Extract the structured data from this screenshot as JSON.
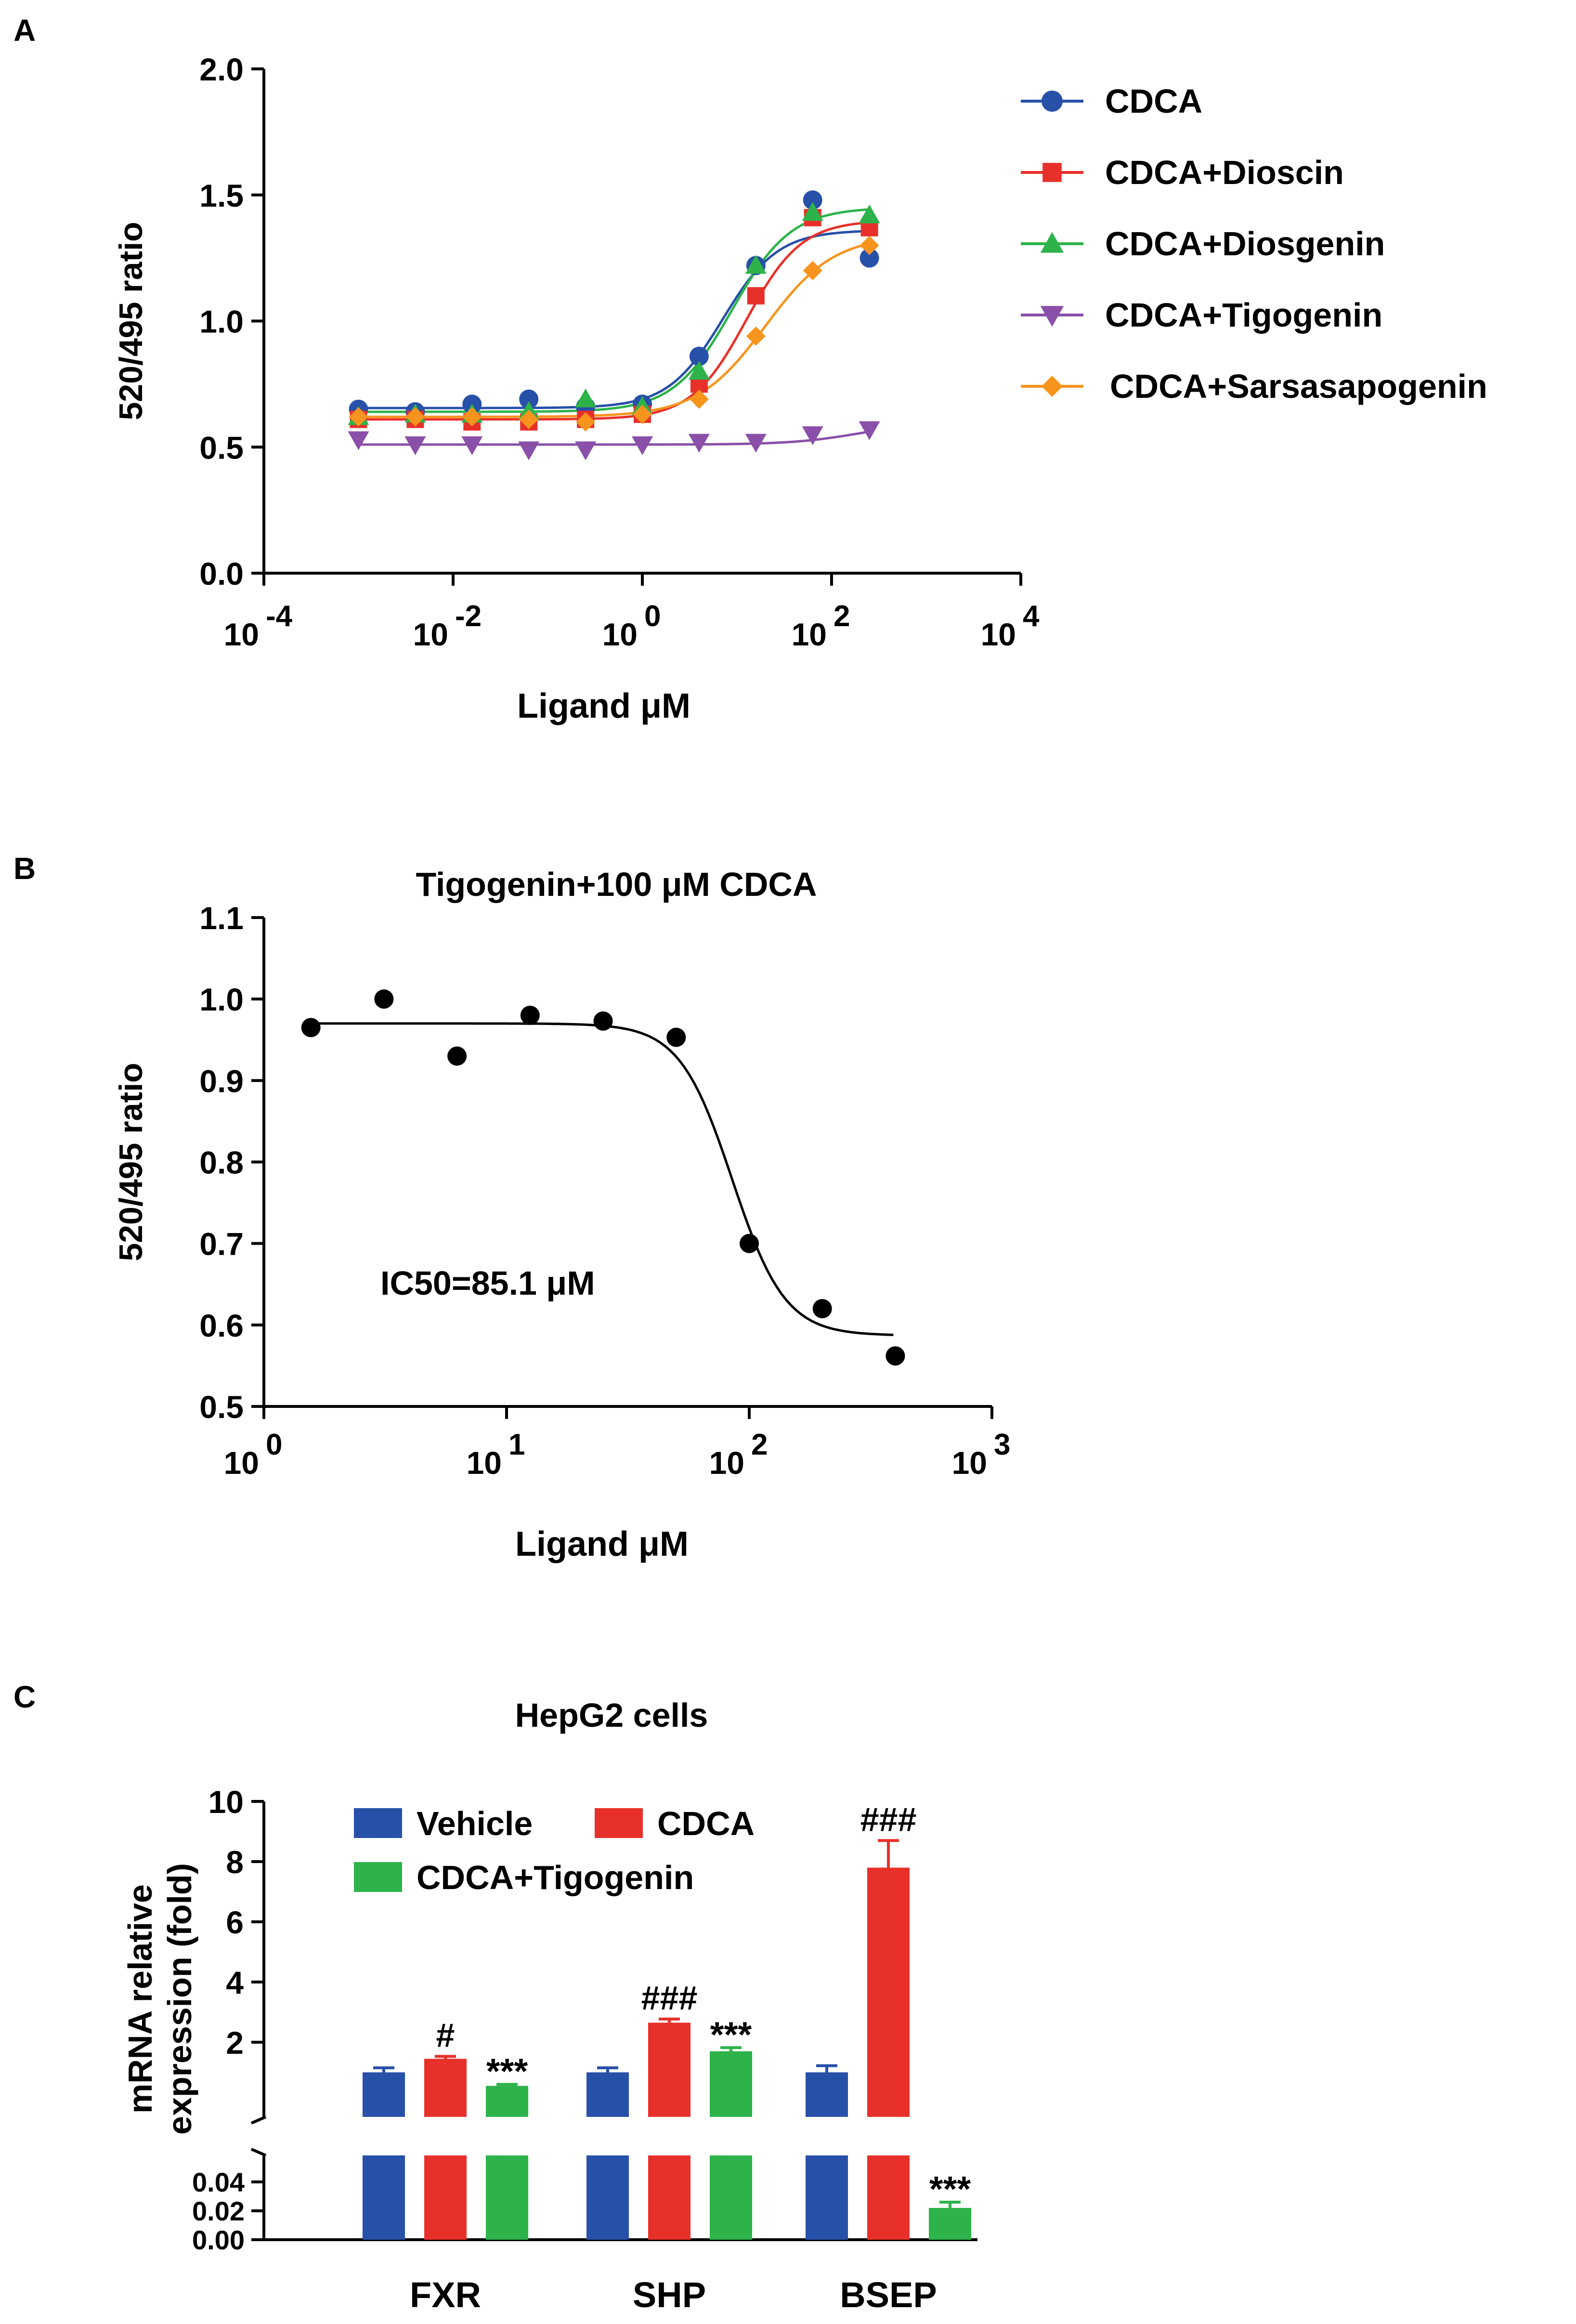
{
  "panels": {
    "A": {
      "label": "A",
      "chart_data": {
        "type": "line",
        "title": "",
        "xlabel": "Ligand μM",
        "ylabel": "520/495 ratio",
        "x_scale": "log10",
        "xlim_exp": [
          -4,
          4
        ],
        "x_ticks": [
          {
            "base": "10",
            "exp": "-4",
            "v": -4
          },
          {
            "base": "10",
            "exp": "-2",
            "v": -2
          },
          {
            "base": "10",
            "exp": "0",
            "v": 0
          },
          {
            "base": "10",
            "exp": "2",
            "v": 2
          },
          {
            "base": "10",
            "exp": "4",
            "v": 4
          }
        ],
        "ylim": [
          0,
          2.0
        ],
        "y_ticks": [
          "0.0",
          "0.5",
          "1.0",
          "1.5",
          "2.0"
        ],
        "legend_position": "top-right",
        "x_log_values": [
          -3.0,
          -2.4,
          -1.8,
          -1.2,
          -0.6,
          0.0,
          0.6,
          1.2,
          1.8,
          2.4
        ],
        "series": [
          {
            "name": "CDCA",
            "color": "#2750a8",
            "marker": "circle",
            "values": [
              0.65,
              0.64,
              0.67,
              0.69,
              0.66,
              0.67,
              0.86,
              1.22,
              1.48,
              1.25
            ],
            "fit": {
              "bottom": 0.655,
              "top": 1.36,
              "logEC50": 0.85,
              "hill": 1.5
            }
          },
          {
            "name": "CDCA+Dioscin",
            "color": "#e8302a",
            "marker": "square",
            "values": [
              0.61,
              0.61,
              0.6,
              0.6,
              0.61,
              0.63,
              0.75,
              1.1,
              1.41,
              1.37
            ],
            "fit": {
              "bottom": 0.61,
              "top": 1.4,
              "logEC50": 1.1,
              "hill": 1.5
            }
          },
          {
            "name": "CDCA+Diosgenin",
            "color": "#2db34a",
            "marker": "triangle-up",
            "values": [
              0.62,
              0.63,
              0.63,
              0.64,
              0.69,
              0.66,
              0.8,
              1.22,
              1.43,
              1.42
            ],
            "fit": {
              "bottom": 0.64,
              "top": 1.45,
              "logEC50": 0.95,
              "hill": 1.4
            }
          },
          {
            "name": "CDCA+Tigogenin",
            "color": "#8a4fa8",
            "marker": "triangle-down",
            "values": [
              0.53,
              0.51,
              0.51,
              0.49,
              0.49,
              0.51,
              0.52,
              0.52,
              0.55,
              0.57
            ],
            "fit": {
              "bottom": 0.51,
              "top": 0.6,
              "logEC50": 2.3,
              "hill": 1.2
            }
          },
          {
            "name": "CDCA+Sarsasapogenin",
            "color": "#f7941d",
            "marker": "diamond",
            "values": [
              0.62,
              0.62,
              0.62,
              0.61,
              0.6,
              0.63,
              0.69,
              0.94,
              1.2,
              1.3
            ],
            "fit": {
              "bottom": 0.62,
              "top": 1.34,
              "logEC50": 1.3,
              "hill": 1.2
            }
          }
        ]
      }
    },
    "B": {
      "label": "B",
      "chart_data": {
        "type": "scatter",
        "title": "Tigogenin+100 μM CDCA",
        "xlabel": "Ligand μM",
        "ylabel": "520/495 ratio",
        "x_scale": "log10",
        "xlim_exp": [
          0,
          3
        ],
        "x_ticks": [
          {
            "base": "10",
            "exp": "0",
            "v": 0
          },
          {
            "base": "10",
            "exp": "1",
            "v": 1
          },
          {
            "base": "10",
            "exp": "2",
            "v": 2
          },
          {
            "base": "10",
            "exp": "3",
            "v": 3
          }
        ],
        "ylim": [
          0.5,
          1.1
        ],
        "y_ticks": [
          "0.5",
          "0.6",
          "0.7",
          "0.8",
          "0.9",
          "1.0",
          "1.1"
        ],
        "annotation": "IC50=85.1 μM",
        "points": [
          {
            "x": 1.5625,
            "y": 0.965
          },
          {
            "x": 3.125,
            "y": 1.0
          },
          {
            "x": 6.25,
            "y": 0.93
          },
          {
            "x": 12.5,
            "y": 0.98
          },
          {
            "x": 25,
            "y": 0.973
          },
          {
            "x": 50,
            "y": 0.953
          },
          {
            "x": 100,
            "y": 0.7
          },
          {
            "x": 200,
            "y": 0.62
          },
          {
            "x": 400,
            "y": 0.562
          }
        ],
        "fit": {
          "top": 0.97,
          "bottom": 0.587,
          "ic50": 85.1,
          "hill": 4.0,
          "x_from": 1.5625,
          "x_to": 400
        }
      }
    },
    "C": {
      "label": "C",
      "chart_data": {
        "type": "bar",
        "title": "HepG2 cells",
        "ylabel": "mRNA relative expression (fold)",
        "ylabel_lines": [
          "mRNA relative",
          "expression (fold)"
        ],
        "xlabel": "",
        "categories": [
          "FXR",
          "SHP",
          "BSEP"
        ],
        "y_upper": {
          "range": [
            0,
            10
          ],
          "ticks": [
            "2",
            "4",
            "6",
            "8",
            "10"
          ]
        },
        "y_lower": {
          "range": [
            0,
            0.05
          ],
          "ticks": [
            "0.00",
            "0.02",
            "0.04"
          ]
        },
        "legend_position": "top-left",
        "series": [
          {
            "name": "Vehicle",
            "color": "#2750a8",
            "values": [
              1.0,
              1.0,
              1.0
            ],
            "errors": [
              0.15,
              0.15,
              0.22
            ]
          },
          {
            "name": "CDCA",
            "color": "#e8302a",
            "values": [
              1.45,
              2.65,
              7.8
            ],
            "errors": [
              0.08,
              0.12,
              0.9
            ]
          },
          {
            "name": "CDCA+Tigogenin",
            "color": "#2db34a",
            "values": [
              0.55,
              1.7,
              0.022
            ],
            "errors": [
              0.05,
              0.12,
              0.004
            ]
          }
        ],
        "annotations": [
          {
            "category": "FXR",
            "series": "CDCA",
            "text": "#"
          },
          {
            "category": "FXR",
            "series": "CDCA+Tigogenin",
            "text": "***"
          },
          {
            "category": "SHP",
            "series": "CDCA",
            "text": "###"
          },
          {
            "category": "SHP",
            "series": "CDCA+Tigogenin",
            "text": "***"
          },
          {
            "category": "BSEP",
            "series": "CDCA",
            "text": "###"
          },
          {
            "category": "BSEP",
            "series": "CDCA+Tigogenin",
            "text": "***"
          }
        ]
      }
    }
  }
}
